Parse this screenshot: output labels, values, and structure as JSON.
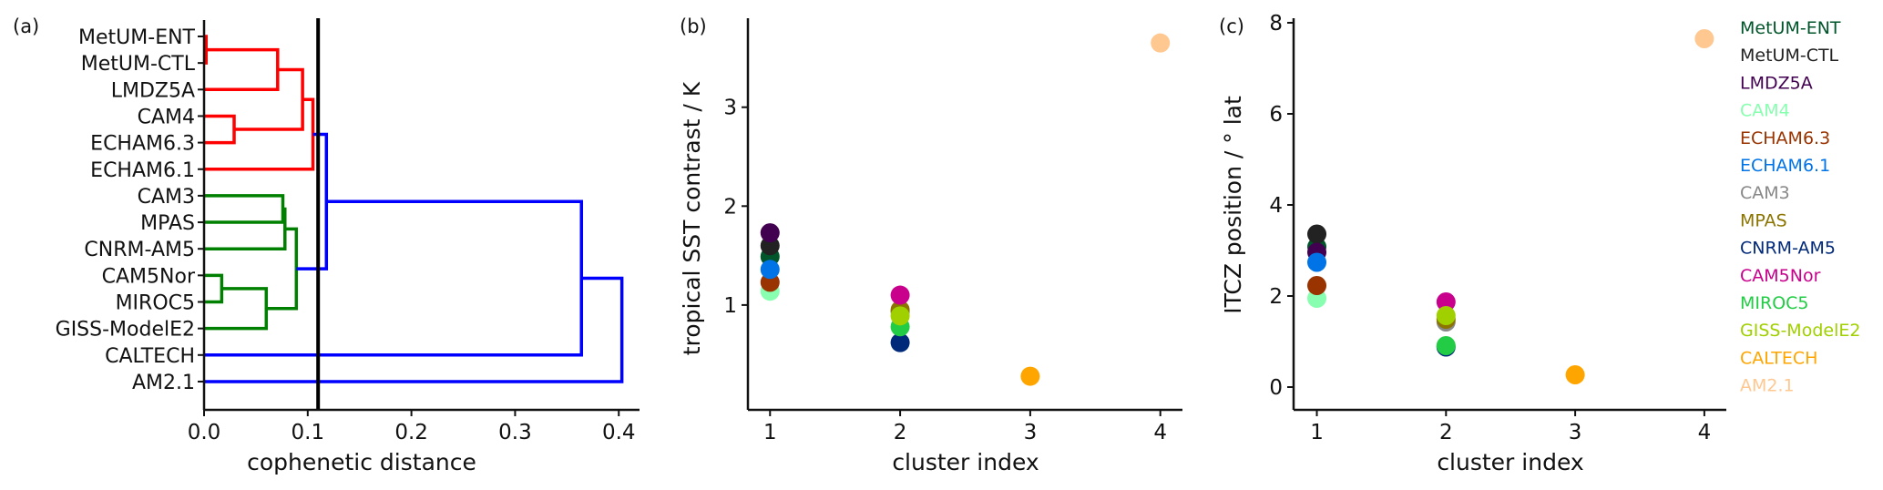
{
  "panel_labels": [
    "(a)",
    "(b)",
    "(c)"
  ],
  "colors": {
    "cluster_red": "#ff0000",
    "cluster_green": "#008000",
    "cluster_blue": "#0000ff",
    "cut_line": "#000000"
  },
  "models": [
    {
      "name": "MetUM-ENT",
      "color": "#00552a",
      "cluster": 1
    },
    {
      "name": "MetUM-CTL",
      "color": "#222222",
      "cluster": 1
    },
    {
      "name": "LMDZ5A",
      "color": "#420050",
      "cluster": 1
    },
    {
      "name": "CAM4",
      "color": "#88ffb0",
      "cluster": 1
    },
    {
      "name": "ECHAM6.3",
      "color": "#993300",
      "cluster": 1
    },
    {
      "name": "ECHAM6.1",
      "color": "#0073e6",
      "cluster": 1
    },
    {
      "name": "CAM3",
      "color": "#888888",
      "cluster": 2
    },
    {
      "name": "MPAS",
      "color": "#8b7400",
      "cluster": 2
    },
    {
      "name": "CNRM-AM5",
      "color": "#00297a",
      "cluster": 2
    },
    {
      "name": "CAM5Nor",
      "color": "#c8008c",
      "cluster": 2
    },
    {
      "name": "MIROC5",
      "color": "#22cc44",
      "cluster": 2
    },
    {
      "name": "GISS-ModelE2",
      "color": "#a0d000",
      "cluster": 2
    },
    {
      "name": "CALTECH",
      "color": "#ffa500",
      "cluster": 3
    },
    {
      "name": "AM2.1",
      "color": "#ffc891",
      "cluster": 4
    }
  ],
  "chart_data": [
    {
      "type": "dendrogram",
      "panel": "(a)",
      "xlabel": "cophenetic distance",
      "xlim": [
        0.0,
        0.42
      ],
      "xticks": [
        0.0,
        0.1,
        0.2,
        0.3,
        0.4
      ],
      "xtick_labels": [
        "0.0",
        "0.1",
        "0.2",
        "0.3",
        "0.4"
      ],
      "leaves": [
        "MetUM-ENT",
        "MetUM-CTL",
        "LMDZ5A",
        "CAM4",
        "ECHAM6.3",
        "ECHAM6.1",
        "CAM3",
        "MPAS",
        "CNRM-AM5",
        "CAM5Nor",
        "MIROC5",
        "GISS-ModelE2",
        "CALTECH",
        "AM2.1"
      ],
      "cut_distance": 0.11,
      "links": [
        {
          "a": "leaf:0",
          "b": "leaf:1",
          "distance": 0.002,
          "color": "red"
        },
        {
          "a": "link:0",
          "b": "leaf:2",
          "distance": 0.071,
          "color": "red"
        },
        {
          "a": "leaf:3",
          "b": "leaf:4",
          "distance": 0.029,
          "color": "red"
        },
        {
          "a": "link:1",
          "b": "link:2",
          "distance": 0.095,
          "color": "red"
        },
        {
          "a": "link:3",
          "b": "leaf:5",
          "distance": 0.105,
          "color": "red"
        },
        {
          "a": "leaf:6",
          "b": "leaf:7",
          "distance": 0.076,
          "color": "green"
        },
        {
          "a": "link:5",
          "b": "leaf:8",
          "distance": 0.078,
          "color": "green"
        },
        {
          "a": "leaf:9",
          "b": "leaf:10",
          "distance": 0.017,
          "color": "green"
        },
        {
          "a": "link:7",
          "b": "leaf:11",
          "distance": 0.06,
          "color": "green"
        },
        {
          "a": "link:6",
          "b": "link:8",
          "distance": 0.089,
          "color": "green"
        },
        {
          "a": "link:4",
          "b": "link:9",
          "distance": 0.118,
          "color": "blue"
        },
        {
          "a": "link:10",
          "b": "leaf:12",
          "distance": 0.364,
          "color": "blue"
        },
        {
          "a": "link:11",
          "b": "leaf:13",
          "distance": 0.403,
          "color": "blue"
        }
      ]
    },
    {
      "type": "scatter",
      "panel": "(b)",
      "xlabel": "cluster index",
      "ylabel": "tropical SST contrast / K",
      "xlim": [
        0.83,
        4.17
      ],
      "ylim": [
        -0.06,
        3.9
      ],
      "xticks": [
        1,
        2,
        3,
        4
      ],
      "yticks": [
        1,
        2,
        3
      ],
      "values": [
        1.49,
        1.6,
        1.73,
        1.14,
        1.23,
        1.36,
        0.93,
        0.95,
        0.62,
        1.1,
        0.78,
        0.89,
        0.28,
        3.65
      ]
    },
    {
      "type": "scatter",
      "panel": "(c)",
      "xlabel": "cluster index",
      "ylabel": "ITCZ position / ° lat",
      "xlim": [
        0.82,
        4.17
      ],
      "ylim": [
        -0.5,
        8.1
      ],
      "xticks": [
        1,
        2,
        3,
        4
      ],
      "yticks": [
        0,
        2,
        4,
        6,
        8
      ],
      "values": [
        3.08,
        3.36,
        2.96,
        1.95,
        2.23,
        2.74,
        1.43,
        1.49,
        0.88,
        1.87,
        0.91,
        1.57,
        0.27,
        7.65
      ]
    }
  ]
}
